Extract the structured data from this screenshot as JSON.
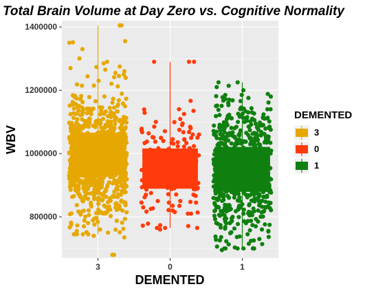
{
  "chart_data": {
    "type": "box-jitter",
    "title": "Total Brain Volume at Day Zero vs. Cognitive Normality",
    "xlabel": "DEMENTED",
    "ylabel": "WBV",
    "ylim": [
      670000,
      1420000
    ],
    "yticks": [
      800000,
      1000000,
      1200000,
      1400000
    ],
    "ytick_labels": [
      "800000",
      "1000000",
      "1200000",
      "1400000"
    ],
    "grid": true,
    "legend_position": "right",
    "legend_title": "DEMENTED",
    "categories": [
      "3",
      "0",
      "1"
    ],
    "series": [
      {
        "name": "3",
        "color": "#E6A800",
        "count": 900,
        "box": {
          "min": 745000,
          "q1": 935000,
          "median": 985000,
          "q3": 1065000,
          "max": 1405000
        },
        "outliers": [
          1405000,
          1405000,
          1355000,
          1350000,
          1330000,
          1290000,
          1285000,
          1275000,
          1270000,
          1265000,
          1260000,
          1255000,
          1250000,
          1245000,
          775000,
          770000,
          760000,
          755000,
          750000,
          745000,
          740000,
          735000,
          680000,
          680000
        ]
      },
      {
        "name": "0",
        "color": "#FF3B0B",
        "count": 130,
        "box": {
          "min": 765000,
          "q1": 890000,
          "median": 950000,
          "q3": 1015000,
          "max": 1290000
        },
        "outliers": [
          1290000,
          1290000,
          1290000,
          1140000,
          1135000,
          1125000,
          1100000,
          1095000,
          1090000,
          1085000,
          1080000,
          1060000,
          850000,
          845000,
          835000,
          830000,
          825000,
          820000,
          815000,
          810000,
          765000,
          760000
        ]
      },
      {
        "name": "1",
        "color": "#0F800F",
        "count": 650,
        "box": {
          "min": 700000,
          "q1": 880000,
          "median": 945000,
          "q3": 1020000,
          "max": 1225000
        },
        "outliers": [
          1225000,
          1210000,
          1200000,
          1185000,
          1170000,
          1160000,
          1150000,
          1145000,
          1140000,
          1130000,
          1120000,
          1110000,
          1100000,
          1090000,
          820000,
          810000,
          800000,
          795000,
          785000,
          780000,
          770000,
          760000,
          745000,
          730000,
          715000,
          700000,
          695000
        ]
      }
    ]
  }
}
